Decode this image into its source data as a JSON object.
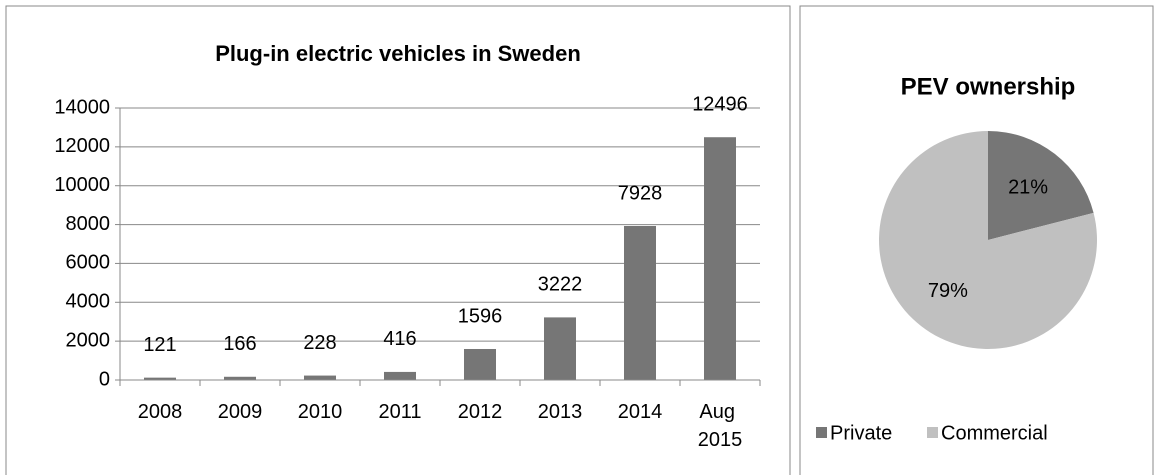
{
  "chart_data": [
    {
      "type": "bar",
      "title": "Plug-in electric vehicles in Sweden",
      "categories": [
        "2008",
        "2009",
        "2010",
        "2011",
        "2012",
        "2013",
        "2014",
        "Aug 2015"
      ],
      "values": [
        121,
        166,
        228,
        416,
        1596,
        3222,
        7928,
        12496
      ],
      "color": "#767676",
      "ylim": [
        0,
        14000
      ],
      "yticks": [
        0,
        2000,
        4000,
        6000,
        8000,
        10000,
        12000,
        14000
      ],
      "grid": true
    },
    {
      "type": "pie",
      "title": "PEV ownership",
      "categories": [
        "Private",
        "Commercial"
      ],
      "values": [
        21,
        79
      ],
      "value_labels": [
        "21%",
        "79%"
      ],
      "colors": [
        "#767676",
        "#c0c0c0"
      ],
      "legend": "bottom"
    }
  ]
}
